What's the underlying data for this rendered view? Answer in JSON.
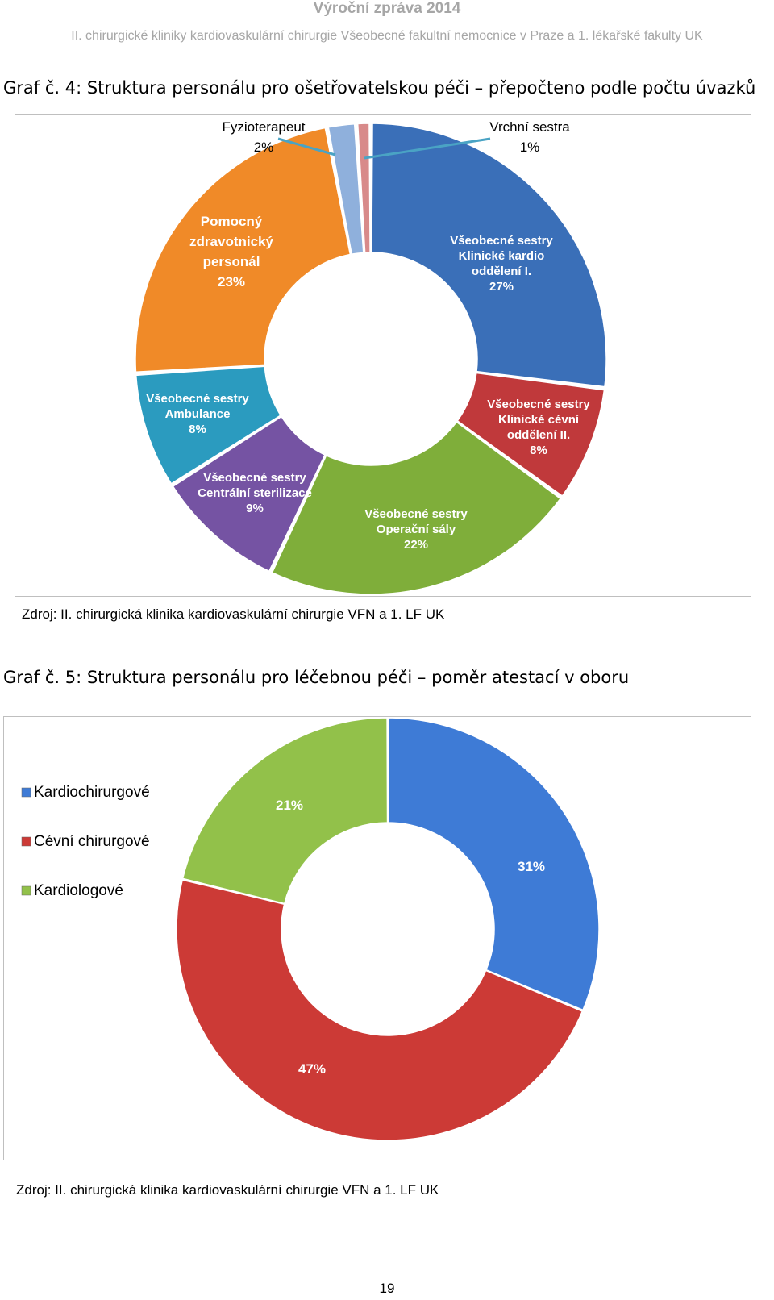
{
  "header": {
    "title": "Výroční zpráva 2014",
    "subtitle": "II. chirurgické kliniky kardiovaskulární chirurgie Všeobecné fakultní nemocnice v Praze a 1. lékařské fakulty UK"
  },
  "chart_data": [
    {
      "type": "pie",
      "title": "Graf č. 4: Struktura personálu pro ošetřovatelskou péči – přepočteno podle počtu úvazků",
      "slices": [
        {
          "label": [
            "Všeobecné sestry",
            "Klinické kardio",
            "oddělení  I."
          ],
          "value": 27,
          "pct": "27%",
          "color": "#3a6fb8"
        },
        {
          "label": [
            "Všeobecné sestry",
            "Klinické cévní",
            "oddělení  II."
          ],
          "value": 8,
          "pct": "8%",
          "color": "#c0393b"
        },
        {
          "label": [
            "Všeobecné sestry",
            "Operační sály"
          ],
          "value": 22,
          "pct": "22%",
          "color": "#7fae3a"
        },
        {
          "label": [
            "Všeobecné sestry",
            "Centrální sterilizace"
          ],
          "value": 9,
          "pct": "9%",
          "color": "#7553a3"
        },
        {
          "label": [
            "Všeobecné sestry",
            "Ambulance"
          ],
          "value": 8,
          "pct": "8%",
          "color": "#2b9bbf"
        },
        {
          "label": [
            "Pomocný",
            "zdravotnický",
            "personál"
          ],
          "value": 23,
          "pct": "23%",
          "color": "#f08a28"
        },
        {
          "label": [
            "Fyzioterapeut"
          ],
          "value": 2,
          "pct": "2%",
          "color": "#8fb0dc"
        },
        {
          "label": [
            "Vrchní sestra"
          ],
          "value": 1,
          "pct": "1%",
          "color": "#d88a8a"
        }
      ],
      "source": "Zdroj: II. chirurgická klinika kardiovaskulární chirurgie VFN a 1. LF UK"
    },
    {
      "type": "pie",
      "title": "Graf č. 5: Struktura personálu pro léčebnou péči – poměr atestací v oboru",
      "slices": [
        {
          "label": "Kardiochirurgové",
          "value": 31,
          "pct": "31%",
          "color": "#3e7bd6"
        },
        {
          "label": "Cévní chirurgové",
          "value": 47,
          "pct": "47%",
          "color": "#cc3a36"
        },
        {
          "label": "Kardiologové",
          "value": 21,
          "pct": "21%",
          "color": "#92c14a"
        }
      ],
      "legend_position": "left",
      "source": "Zdroj: II. chirurgická klinika kardiovaskulární chirurgie VFN a 1. LF UK"
    }
  ],
  "page_number": "19"
}
